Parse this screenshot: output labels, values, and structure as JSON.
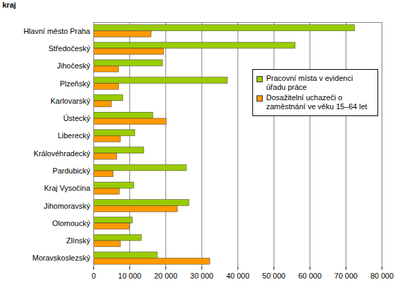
{
  "chart_data": {
    "type": "bar",
    "orientation": "horizontal",
    "y_label": "kraj",
    "categories": [
      "Hlavní město Praha",
      "Středočeský",
      "Jihočeský",
      "Plzeňský",
      "Karlovarský",
      "Ústecký",
      "Liberecký",
      "Královéhradecký",
      "Pardubický",
      "Kraj Vysočina",
      "Jihomoravský",
      "Olomoucký",
      "Zlínský",
      "Moravskoslezský"
    ],
    "series": [
      {
        "name": "Pracovní místa v evidenci úřadu práce",
        "color": "#99cc00",
        "values": [
          72500,
          56000,
          19200,
          37200,
          8200,
          16500,
          11500,
          14000,
          25800,
          11200,
          26500,
          10800,
          13300,
          17700
        ]
      },
      {
        "name": "Dosažitelní uchazeči o zaměstnání ve věku 15–64 let",
        "color": "#ff9900",
        "values": [
          16000,
          19500,
          7000,
          7000,
          5000,
          20200,
          7500,
          6500,
          5500,
          7200,
          23300,
          10000,
          7500,
          32300
        ]
      }
    ],
    "xlim": [
      0,
      80000
    ],
    "xticks": [
      0,
      {
        "value": 10000,
        "label": "10 000"
      },
      {
        "value": 20000,
        "label": "20 000"
      },
      {
        "value": 30000,
        "label": "30 000"
      },
      {
        "value": 40000,
        "label": "40 000"
      },
      {
        "value": 50000,
        "label": "50 000"
      },
      {
        "value": 60000,
        "label": "60 000"
      },
      {
        "value": 70000,
        "label": "70 000"
      },
      {
        "value": 80000,
        "label": "80 000"
      }
    ],
    "grid": true,
    "legend": "top-right"
  }
}
